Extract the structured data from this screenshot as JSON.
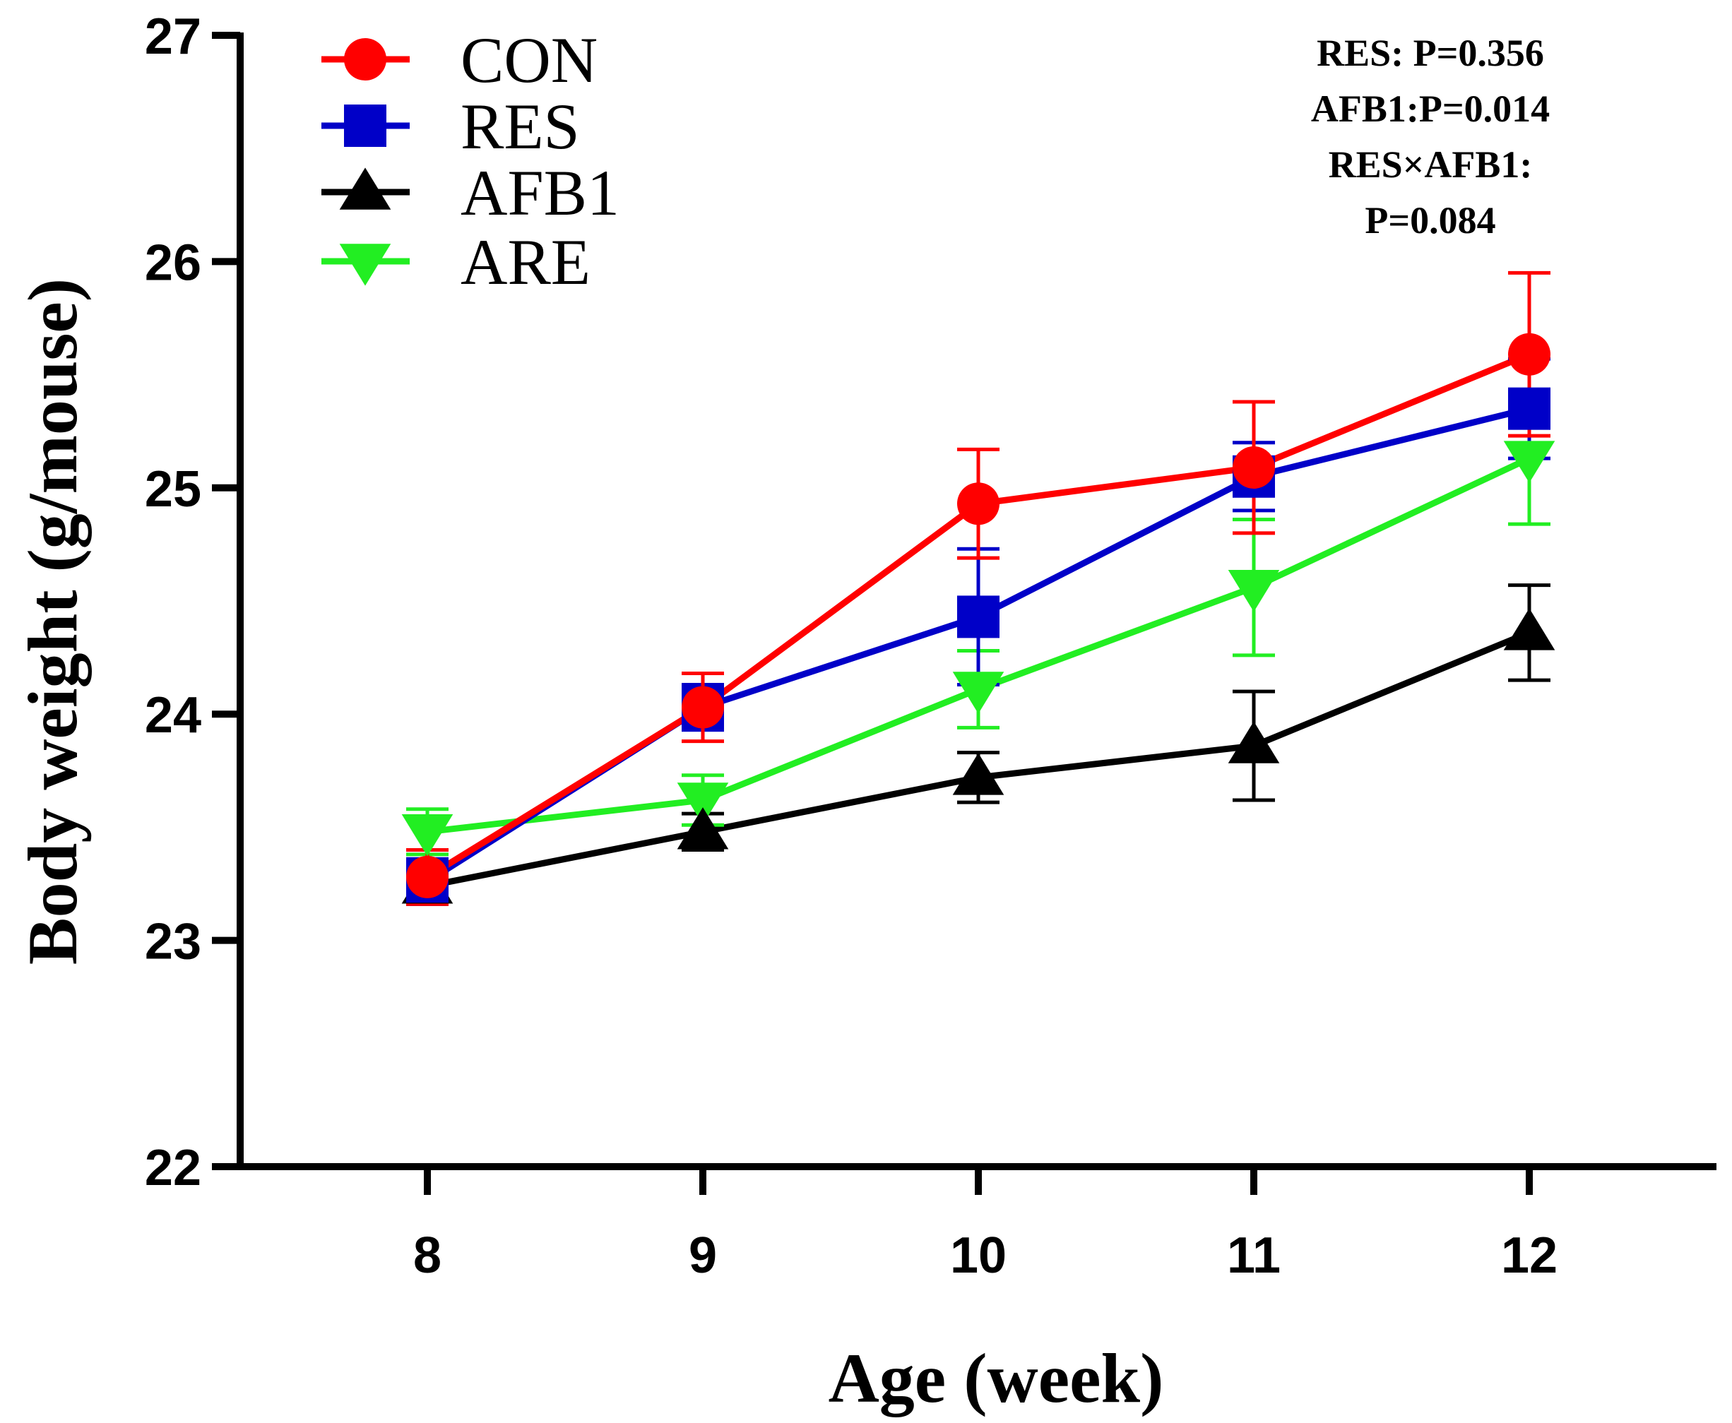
{
  "chart_data": {
    "type": "line",
    "title": "",
    "xlabel": "Age (week)",
    "ylabel": "Body weight (g/mouse)",
    "x": [
      8,
      9,
      10,
      11,
      12
    ],
    "x_tick_labels": [
      "8",
      "9",
      "10",
      "11",
      "12"
    ],
    "ylim": [
      22,
      27
    ],
    "y_ticks": [
      22,
      23,
      24,
      25,
      26,
      27
    ],
    "y_tick_labels": [
      "22",
      "23",
      "24",
      "25",
      "26",
      "27"
    ],
    "grid": false,
    "legend_position": "top-left",
    "series": [
      {
        "name": "CON",
        "color": "#ff0000",
        "marker": "circle",
        "values": [
          23.28,
          24.03,
          24.93,
          25.09,
          25.59
        ],
        "errors": [
          0.12,
          0.15,
          0.24,
          0.29,
          0.36
        ]
      },
      {
        "name": "RES",
        "color": "#0000c8",
        "marker": "square",
        "values": [
          23.26,
          24.03,
          24.43,
          25.05,
          25.35
        ],
        "errors": [
          0.1,
          0.1,
          0.3,
          0.15,
          0.22
        ]
      },
      {
        "name": "AFB1",
        "color": "#000000",
        "marker": "triangle-up",
        "values": [
          23.24,
          23.48,
          23.72,
          23.86,
          24.36
        ],
        "errors": [
          0.08,
          0.08,
          0.11,
          0.24,
          0.21
        ]
      },
      {
        "name": "ARE",
        "color": "#22ee22",
        "marker": "triangle-down",
        "values": [
          23.48,
          23.62,
          24.11,
          24.56,
          25.13
        ],
        "errors": [
          0.1,
          0.11,
          0.17,
          0.3,
          0.29
        ]
      }
    ],
    "annotations": [
      "RES: P=0.356",
      "AFB1:P=0.014",
      "RES×AFB1:",
      "P=0.084"
    ]
  }
}
